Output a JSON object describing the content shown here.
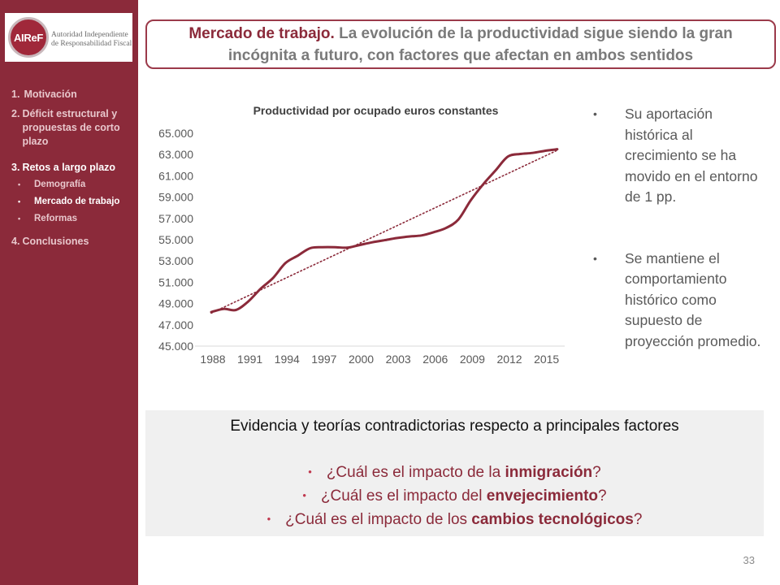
{
  "logo": {
    "mark": "AIReF",
    "line1": "Autoridad Independiente",
    "line2": "de Responsabilidad Fiscal"
  },
  "nav": {
    "items": [
      {
        "num": "1.",
        "label": "Motivación",
        "active": false
      },
      {
        "num": "2.",
        "label": "Déficit estructural y propuestas de corto plazo",
        "active": false
      },
      {
        "num": "3.",
        "label": "Retos a largo plazo",
        "active": true
      },
      {
        "num": "4.",
        "label": "Conclusiones",
        "active": false
      }
    ],
    "subitems": [
      {
        "label": "Demografía",
        "active": false
      },
      {
        "label": "Mercado de trabajo",
        "active": true
      },
      {
        "label": "Reformas",
        "active": false
      }
    ]
  },
  "title": {
    "highlight": "Mercado de trabajo.",
    "rest": " La evolución de la productividad sigue siendo la gran incógnita a futuro, con factores que afectan en ambos sentidos"
  },
  "chart_data": {
    "type": "line",
    "title": "Productividad por ocupado euros constantes",
    "xlabel": "",
    "ylabel": "",
    "x": [
      1988,
      1989,
      1990,
      1991,
      1992,
      1993,
      1994,
      1995,
      1996,
      1997,
      1998,
      1999,
      2000,
      2001,
      2002,
      2003,
      2004,
      2005,
      2006,
      2007,
      2008,
      2009,
      2010,
      2011,
      2012,
      2013,
      2014,
      2015,
      2016
    ],
    "series": [
      {
        "name": "",
        "values": [
          48200,
          48500,
          48400,
          49200,
          50400,
          51400,
          52800,
          53500,
          54200,
          54300,
          54300,
          54250,
          54500,
          54750,
          54950,
          55150,
          55300,
          55400,
          55700,
          56100,
          56900,
          58700,
          60200,
          61500,
          62800,
          63050,
          63150,
          63350,
          63500
        ]
      }
    ],
    "trendline": {
      "style": "dotted",
      "start": 48100,
      "end": 63400
    },
    "xticks": [
      "1988",
      "1991",
      "1994",
      "1997",
      "2000",
      "2003",
      "2006",
      "2009",
      "2012",
      "2015"
    ],
    "yticks": [
      "45.000",
      "47.000",
      "49.000",
      "51.000",
      "53.000",
      "55.000",
      "57.000",
      "59.000",
      "61.000",
      "63.000",
      "65.000"
    ],
    "ylim": [
      45000,
      65000
    ],
    "xlim": [
      1988,
      2016.6
    ],
    "grid": false,
    "color": "#8b2a3a"
  },
  "bullets": [
    "Su aportación histórica al crecimiento se ha movido en el entorno  de 1 pp.",
    "Se mantiene el comportamiento histórico como supuesto de proyección promedio."
  ],
  "evidence": {
    "heading": "Evidencia y teorías contradictorias respecto a principales factores",
    "questions": [
      {
        "pre": "¿Cuál es el impacto de la ",
        "bold": "inmigración",
        "post": "?"
      },
      {
        "pre": "¿Cuál es el impacto del ",
        "bold": "envejecimiento",
        "post": "?"
      },
      {
        "pre": "¿Cuál es el impacto de los ",
        "bold": "cambios tecnológicos",
        "post": "?"
      }
    ]
  },
  "page_number": "33"
}
